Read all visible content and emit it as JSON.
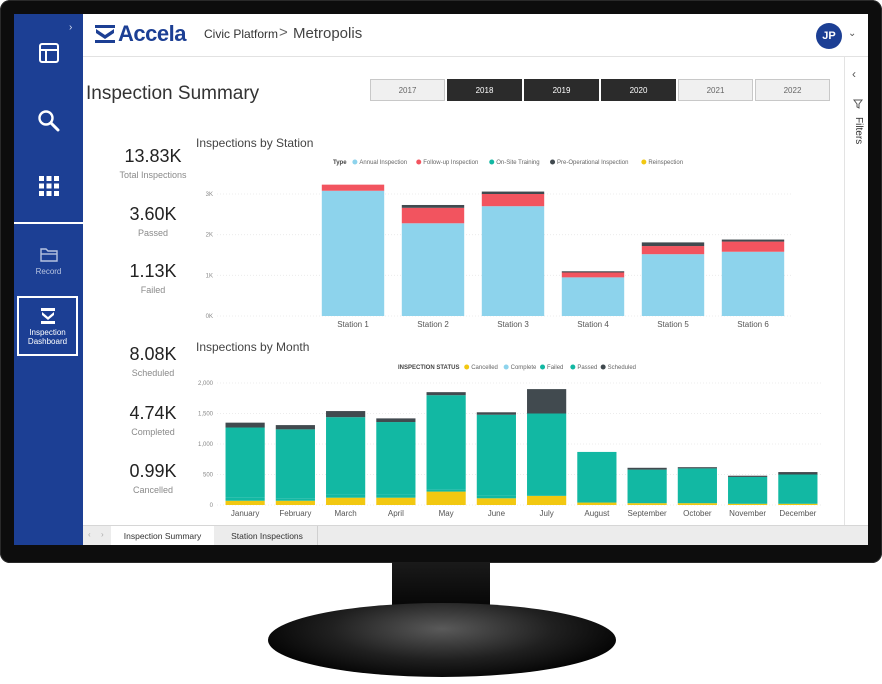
{
  "header": {
    "logo_text": "Accela",
    "breadcrumb_parent": "Civic Platform",
    "breadcrumb_separator": ">",
    "breadcrumb_current": "Metropolis",
    "user_initials": "JP"
  },
  "nav": {
    "items": [
      {
        "icon": "layout-icon"
      },
      {
        "icon": "search-icon"
      },
      {
        "icon": "apps-grid-icon"
      },
      {
        "icon": "folder-icon",
        "label": "Record"
      },
      {
        "icon": "dashboard-icon",
        "label": "Inspection Dashboard",
        "active": true
      }
    ]
  },
  "page_title": "Inspection Summary",
  "years": [
    {
      "label": "2017",
      "selected": false
    },
    {
      "label": "2018",
      "selected": true
    },
    {
      "label": "2019",
      "selected": true
    },
    {
      "label": "2020",
      "selected": true
    },
    {
      "label": "2021",
      "selected": false
    },
    {
      "label": "2022",
      "selected": false
    }
  ],
  "kpis": [
    {
      "value": "13.83K",
      "label": "Total Inspections"
    },
    {
      "value": "3.60K",
      "label": "Passed"
    },
    {
      "value": "1.13K",
      "label": "Failed"
    },
    {
      "value": "8.08K",
      "label": "Scheduled"
    },
    {
      "value": "4.74K",
      "label": "Completed"
    },
    {
      "value": "0.99K",
      "label": "Cancelled"
    }
  ],
  "filters_label": "Filters",
  "chart_data": [
    {
      "type": "bar",
      "stacked": true,
      "title": "Inspections by Station",
      "legend_title": "Type",
      "legend_placement": "top",
      "categories": [
        "Station 1",
        "Station 2",
        "Station 3",
        "Station 4",
        "Station 5",
        "Station 6"
      ],
      "y_ticks": [
        "0K",
        "1K",
        "2K",
        "3K"
      ],
      "ylim": [
        0,
        3000
      ],
      "series": [
        {
          "name": "Annual Inspection",
          "color": "#8dd3ec",
          "values": [
            3080,
            2280,
            2700,
            950,
            1520,
            1580
          ]
        },
        {
          "name": "Follow-up Inspection",
          "color": "#f2545f",
          "values": [
            150,
            380,
            300,
            120,
            200,
            250
          ]
        },
        {
          "name": "On-Site Training",
          "color": "#12b8a3",
          "values": [
            0,
            0,
            0,
            0,
            0,
            0
          ]
        },
        {
          "name": "Pre-Operational Inspection",
          "color": "#414a4f",
          "values": [
            0,
            70,
            60,
            30,
            90,
            50
          ]
        },
        {
          "name": "Reinspection",
          "color": "#f2c811",
          "values": [
            0,
            0,
            0,
            0,
            0,
            0
          ]
        }
      ]
    },
    {
      "type": "bar",
      "stacked": true,
      "title": "Inspections by Month",
      "legend_title": "INSPECTION STATUS",
      "legend_placement": "top",
      "categories": [
        "January",
        "February",
        "March",
        "April",
        "May",
        "June",
        "July",
        "August",
        "September",
        "October",
        "November",
        "December"
      ],
      "y_ticks": [
        "0",
        "500",
        "1,000",
        "1,500",
        "2,000"
      ],
      "ylim": [
        0,
        2000
      ],
      "series": [
        {
          "name": "Cancelled",
          "color": "#f2c811",
          "values": [
            70,
            70,
            120,
            120,
            220,
            110,
            150,
            40,
            30,
            30,
            20,
            20
          ]
        },
        {
          "name": "Complete",
          "color": "#8dd3ec",
          "values": [
            0,
            0,
            0,
            0,
            0,
            0,
            0,
            0,
            0,
            0,
            0,
            0
          ]
        },
        {
          "name": "Failed",
          "color": "#12b8a3",
          "values": [
            50,
            40,
            50,
            50,
            40,
            40,
            30,
            0,
            0,
            0,
            0,
            0
          ]
        },
        {
          "name": "Passed",
          "color": "#12b8a3",
          "values": [
            1150,
            1130,
            1270,
            1190,
            1540,
            1330,
            1320,
            830,
            550,
            570,
            440,
            480
          ]
        },
        {
          "name": "Scheduled",
          "color": "#414a4f",
          "values": [
            80,
            70,
            100,
            60,
            50,
            40,
            400,
            0,
            30,
            20,
            20,
            40
          ]
        }
      ]
    }
  ],
  "page_tabs": [
    {
      "label": "Inspection Summary",
      "active": true
    },
    {
      "label": "Station Inspections",
      "active": false
    }
  ]
}
